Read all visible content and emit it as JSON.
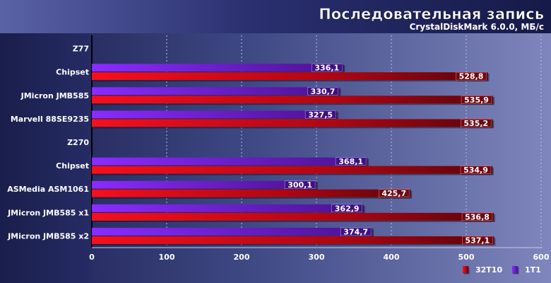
{
  "chart_data": {
    "type": "bar",
    "title": "Последовательная запись",
    "subtitle": "CrystalDiskMark 6.0.0, МБ/с",
    "categories": [
      "Z77",
      "Chipset",
      "JMicron JMB585",
      "Marvell 88SE9235",
      "Z270",
      "Chipset",
      "ASMedia ASM1061",
      "JMicron JMB585 x1",
      "JMicron JMB585 x2"
    ],
    "series": [
      {
        "name": "1T1",
        "values": [
          null,
          336.1,
          330.7,
          327.5,
          null,
          368.1,
          300.1,
          362.9,
          374.7
        ],
        "color": "#7a1ff2"
      },
      {
        "name": "32T10",
        "values": [
          null,
          528.8,
          535.9,
          535.2,
          null,
          534.9,
          425.7,
          536.8,
          537.1
        ],
        "color": "#e0101a"
      }
    ],
    "series_labels": {
      "1T1": [
        "",
        "336,1",
        "330,7",
        "327,5",
        "",
        "368,1",
        "300,1",
        "362,9",
        "374,7"
      ],
      "32T10": [
        "",
        "528,8",
        "535,9",
        "535,2",
        "",
        "534,9",
        "425,7",
        "536,8",
        "537,1"
      ]
    },
    "x_ticks": [
      "0",
      "100",
      "200",
      "300",
      "400",
      "500",
      "600"
    ],
    "xlim": [
      0,
      600
    ],
    "grid": true,
    "legend": {
      "position": "bottom-right",
      "order": [
        "32T10",
        "1T1"
      ]
    }
  }
}
